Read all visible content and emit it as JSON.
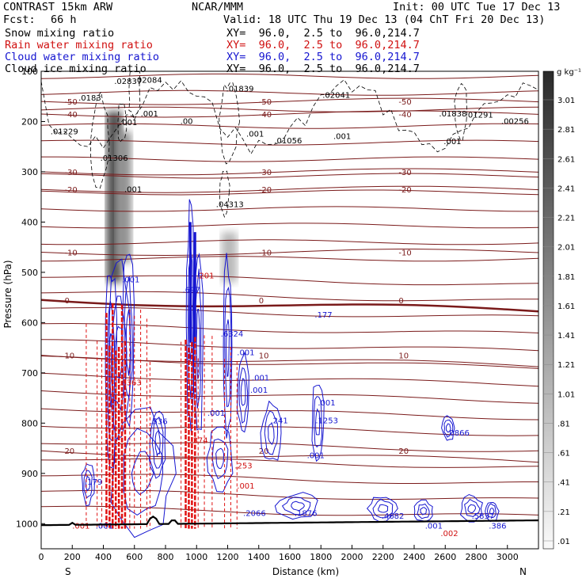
{
  "header": {
    "model": "CONTRAST 15km ARW",
    "org": "NCAR/MMM",
    "init": "Init: 00 UTC Tue 17 Dec 13",
    "fcst_label": "Fcst:",
    "fcst_value": "66 h",
    "valid": "Valid: 18 UTC Thu 19 Dec 13 (04 ChT Fri 20 Dec 13)"
  },
  "fields": [
    {
      "name": "Snow mixing ratio",
      "xy": "XY=  96.0,  2.5 to  96.0,214.7",
      "color": "#000000"
    },
    {
      "name": "Rain water mixing ratio",
      "xy": "XY=  96.0,  2.5 to  96.0,214.7",
      "color": "#d01010"
    },
    {
      "name": "Cloud water mixing ratio",
      "xy": "XY=  96.0,  2.5 to  96.0,214.7",
      "color": "#1515d0"
    },
    {
      "name": "Cloud ice mixing ratio",
      "xy": "XY=  96.0,  2.5 to  96.0,214.7",
      "color": "#000000"
    }
  ],
  "chart_data": {
    "type": "heatmap",
    "xlabel": "Distance (km)",
    "ylabel": "Pressure (hPa)",
    "xlim": [
      0,
      3200
    ],
    "ylim": [
      1050,
      100
    ],
    "x_ticks": [
      0,
      200,
      400,
      600,
      800,
      1000,
      1200,
      1400,
      1600,
      1800,
      2000,
      2200,
      2400,
      2600,
      2800,
      3000
    ],
    "y_ticks": [
      100,
      200,
      300,
      400,
      500,
      600,
      700,
      800,
      900,
      1000
    ],
    "x_end_labels": {
      "left": "S",
      "right": "N"
    },
    "colorbar": {
      "units": "g kg⁻¹",
      "labels": [
        "3.01",
        "2.81",
        "2.61",
        "2.41",
        "2.21",
        "2.01",
        "1.81",
        "1.61",
        "1.41",
        "1.21",
        "1.01",
        ".81",
        ".61",
        ".41",
        ".21",
        ".01"
      ]
    },
    "temperature_isotherms": [
      {
        "label": "-50",
        "p": 160
      },
      {
        "label": "-40",
        "p": 185
      },
      {
        "label": "-30",
        "p": 300
      },
      {
        "label": "-20",
        "p": 335
      },
      {
        "label": "-10",
        "p": 460
      },
      {
        "label": "0",
        "p": 555,
        "bold": true
      },
      {
        "label": "10",
        "p": 665
      },
      {
        "label": "20",
        "p": 855
      }
    ],
    "snow_columns": [
      {
        "x": 470,
        "top": 180,
        "bottom": 520,
        "intensity": 0.85
      },
      {
        "x": 530,
        "top": 220,
        "bottom": 480,
        "intensity": 0.55
      },
      {
        "x": 1210,
        "top": 420,
        "bottom": 520,
        "intensity": 0.35
      }
    ],
    "point_labels": [
      {
        "text": ".0183",
        "x": 240,
        "p": 158,
        "color": "black"
      },
      {
        "text": ".02837",
        "x": 470,
        "p": 125,
        "color": "black"
      },
      {
        "text": ".02084",
        "x": 600,
        "p": 123,
        "color": "black"
      },
      {
        "text": ".01839",
        "x": 1190,
        "p": 140,
        "color": "black"
      },
      {
        "text": ".02041",
        "x": 1810,
        "p": 153,
        "color": "black"
      },
      {
        "text": ".01838",
        "x": 2560,
        "p": 190,
        "color": "black"
      },
      {
        "text": ".01291",
        "x": 2730,
        "p": 192,
        "color": "black"
      },
      {
        "text": ".00256",
        "x": 2960,
        "p": 205,
        "color": "black"
      },
      {
        "text": ".01229",
        "x": 60,
        "p": 225,
        "color": "black"
      },
      {
        "text": ".01306",
        "x": 380,
        "p": 278,
        "color": "black"
      },
      {
        "text": ".04313",
        "x": 1125,
        "p": 370,
        "color": "black"
      },
      {
        "text": ".001",
        "x": 640,
        "p": 190,
        "color": "black"
      },
      {
        "text": ".001",
        "x": 1320,
        "p": 230,
        "color": "black"
      },
      {
        "text": ".001",
        "x": 1880,
        "p": 235,
        "color": "black"
      },
      {
        "text": ".001",
        "x": 2590,
        "p": 245,
        "color": "black"
      },
      {
        "text": ".01056",
        "x": 1500,
        "p": 243,
        "color": "black"
      },
      {
        "text": ".001",
        "x": 505,
        "p": 207,
        "color": "black"
      },
      {
        "text": ".001",
        "x": 535,
        "p": 340,
        "color": "black"
      },
      {
        "text": ".00",
        "x": 895,
        "p": 205,
        "color": "black"
      },
      {
        "text": ".697",
        "x": 910,
        "p": 540,
        "color": "blue"
      },
      {
        "text": ".001",
        "x": 520,
        "p": 520,
        "color": "blue"
      },
      {
        "text": ".177",
        "x": 1760,
        "p": 590,
        "color": "blue"
      },
      {
        "text": ".6324",
        "x": 1155,
        "p": 628,
        "color": "blue"
      },
      {
        "text": ".001",
        "x": 1260,
        "p": 665,
        "color": "blue"
      },
      {
        "text": ".001",
        "x": 1355,
        "p": 715,
        "color": "blue"
      },
      {
        "text": ".001",
        "x": 1345,
        "p": 740,
        "color": "blue"
      },
      {
        "text": ".001",
        "x": 1780,
        "p": 765,
        "color": "blue"
      },
      {
        "text": ".001",
        "x": 1070,
        "p": 785,
        "color": "blue"
      },
      {
        "text": ".1253",
        "x": 1765,
        "p": 800,
        "color": "blue"
      },
      {
        "text": ".241",
        "x": 1475,
        "p": 800,
        "color": "blue"
      },
      {
        "text": ".536",
        "x": 700,
        "p": 802,
        "color": "blue"
      },
      {
        "text": ".0866",
        "x": 2610,
        "p": 825,
        "color": "blue"
      },
      {
        "text": ".001",
        "x": 1710,
        "p": 870,
        "color": "blue"
      },
      {
        "text": ".179",
        "x": 280,
        "p": 922,
        "color": "blue"
      },
      {
        "text": ".1876",
        "x": 1630,
        "p": 985,
        "color": "blue"
      },
      {
        "text": ".2066",
        "x": 1300,
        "p": 985,
        "color": "blue"
      },
      {
        "text": ".4682",
        "x": 2190,
        "p": 990,
        "color": "blue"
      },
      {
        "text": ".001",
        "x": 2470,
        "p": 1010,
        "color": "blue"
      },
      {
        "text": ".5837",
        "x": 2770,
        "p": 990,
        "color": "blue"
      },
      {
        "text": ".386",
        "x": 2880,
        "p": 1010,
        "color": "blue"
      },
      {
        "text": ".001",
        "x": 350,
        "p": 1010,
        "color": "blue"
      },
      {
        "text": ".6363",
        "x": 500,
        "p": 725,
        "color": "red"
      },
      {
        "text": ".201",
        "x": 1000,
        "p": 512,
        "color": "red"
      },
      {
        "text": ".374",
        "x": 960,
        "p": 840,
        "color": "red"
      },
      {
        "text": ".253",
        "x": 1245,
        "p": 890,
        "color": "red"
      },
      {
        "text": ".001",
        "x": 1260,
        "p": 930,
        "color": "red"
      },
      {
        "text": ".002",
        "x": 2570,
        "p": 1025,
        "color": "red"
      },
      {
        "text": ".001",
        "x": 200,
        "p": 1010,
        "color": "red"
      }
    ]
  }
}
